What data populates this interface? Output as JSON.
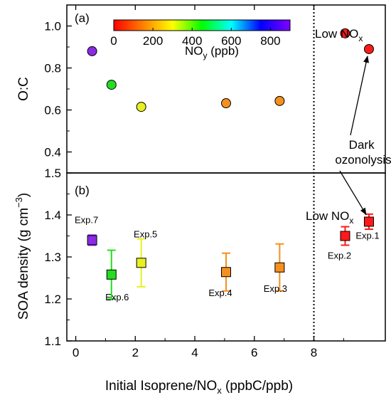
{
  "chart_data": [
    {
      "panel_label": "(a)",
      "type": "scatter",
      "ylabel": "O:C",
      "ylim": [
        0.3,
        1.1
      ],
      "yticks": [
        0.4,
        0.6,
        0.8,
        1.0
      ],
      "ytick_labels": [
        "0.4",
        "0.6",
        "0.8",
        "1.0"
      ],
      "colorbar": {
        "title": "NOy (ppb)",
        "range": [
          0,
          900
        ],
        "ticks": [
          0,
          200,
          400,
          600,
          800
        ],
        "tick_labels": [
          "0",
          "200",
          "400",
          "600",
          "800"
        ],
        "colors": [
          "#ff0000",
          "#ff8000",
          "#ffff00",
          "#00ff00",
          "#00ffff",
          "#0000ff",
          "#8000ff"
        ]
      },
      "points": [
        {
          "x": 0.55,
          "y": 0.88,
          "color": "#8a2be2"
        },
        {
          "x": 1.2,
          "y": 0.72,
          "color": "#22dd22"
        },
        {
          "x": 2.2,
          "y": 0.615,
          "color": "#e8f020"
        },
        {
          "x": 5.05,
          "y": 0.632,
          "color": "#f5901e"
        },
        {
          "x": 6.85,
          "y": 0.643,
          "color": "#f5901e"
        },
        {
          "x": 9.05,
          "y": 0.965,
          "color": "#ff1a1a"
        },
        {
          "x": 9.85,
          "y": 0.89,
          "color": "#ff1a1a"
        }
      ],
      "annotations": {
        "low_nox": "Low NO",
        "low_nox_sub": "x"
      }
    },
    {
      "panel_label": "(b)",
      "type": "scatter",
      "ylabel": "SOA density (g cm",
      "ylabel_sup": "−3",
      "ylabel_end": ")",
      "ylim": [
        1.1,
        1.5
      ],
      "yticks": [
        1.1,
        1.2,
        1.3,
        1.4,
        1.5
      ],
      "ytick_labels": [
        "1.1",
        "1.2",
        "1.3",
        "1.4",
        "1.5"
      ],
      "points": [
        {
          "x": 0.55,
          "y": 1.34,
          "err": 0.012,
          "color": "#8a2be2",
          "label": "Exp.7"
        },
        {
          "x": 1.2,
          "y": 1.258,
          "err": 0.058,
          "color": "#22dd22",
          "label": "Exp.6"
        },
        {
          "x": 2.2,
          "y": 1.286,
          "err": 0.057,
          "color": "#e8f020",
          "label": "Exp.5"
        },
        {
          "x": 5.05,
          "y": 1.264,
          "err": 0.045,
          "color": "#f5901e",
          "label": "Exp.4"
        },
        {
          "x": 6.85,
          "y": 1.275,
          "err": 0.056,
          "color": "#f5901e",
          "label": "Exp.3"
        },
        {
          "x": 9.05,
          "y": 1.35,
          "err": 0.022,
          "color": "#ff1a1a",
          "label": "Exp.2"
        },
        {
          "x": 9.85,
          "y": 1.384,
          "err": 0.018,
          "color": "#ff1a1a",
          "label": "Exp.1"
        }
      ],
      "annotations": {
        "low_nox": "Low NO",
        "low_nox_sub": "x"
      }
    }
  ],
  "shared_x": {
    "xlabel": "Initial Isoprene/NO",
    "xlabel_sub": "x",
    "xlabel_end": " (ppbC/ppb)",
    "xlim": [
      -0.3,
      10.4
    ],
    "xticks": [
      0,
      2,
      4,
      6,
      8
    ],
    "xtick_labels": [
      "0",
      "2",
      "4",
      "6",
      "8"
    ],
    "divider_x": 8
  },
  "dark_ozonolysis": [
    "Dark",
    "ozonolysis"
  ],
  "colorbar_title_parts": {
    "main": "NO",
    "sub": "y",
    "end": " (ppb)"
  }
}
